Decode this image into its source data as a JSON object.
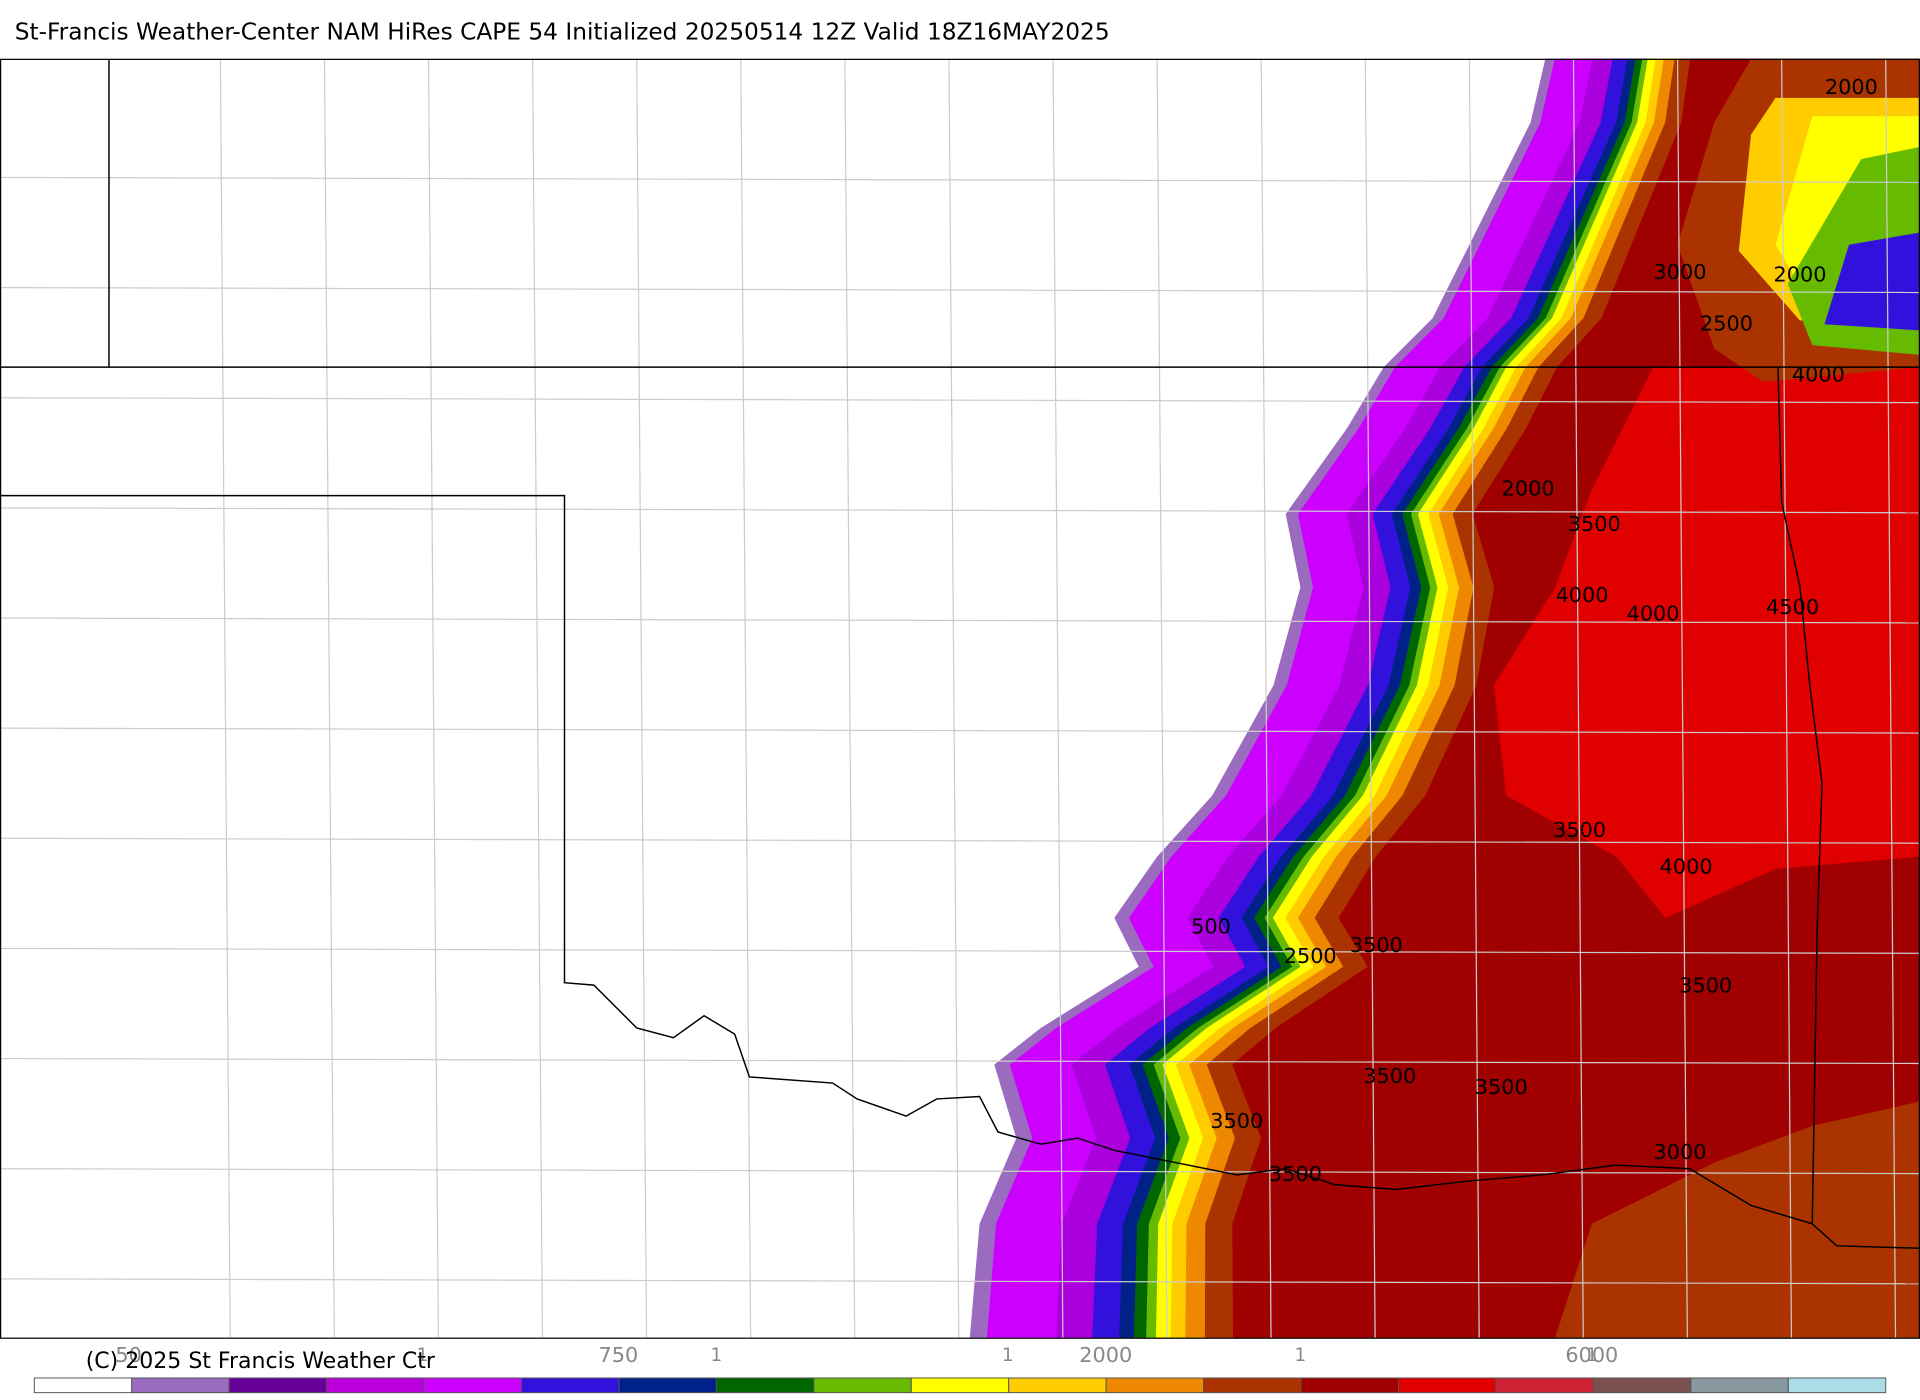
{
  "header": {
    "title": "St-Francis Weather-Center NAM HiRes CAPE  54 Initialized 20250514 12Z Valid 18Z16MAY2025"
  },
  "map": {
    "contour_labels": [
      "2000",
      "3000",
      "2000",
      "2500",
      "4000",
      "2000",
      "3500",
      "4000",
      "4000",
      "4500",
      "3500",
      "4000",
      "500",
      "2500",
      "3500",
      "3500",
      "3500",
      "3500",
      "3500",
      "3000",
      "3500"
    ]
  },
  "colorbar": {
    "labels": [
      "50",
      "750",
      "2000",
      "6000"
    ],
    "separators": [
      "1",
      "1",
      "1",
      "1",
      "1"
    ],
    "colors": [
      "#ffffff",
      "#9b6bbf",
      "#660099",
      "#bb00dd",
      "#cc00ff",
      "#3311dd",
      "#002288",
      "#006600",
      "#66bb00",
      "#ffff00",
      "#ffcc00",
      "#ee8800",
      "#aa3300",
      "#a00000",
      "#e00000",
      "#cc2233",
      "#7a5050",
      "#8899a0",
      "#aadde8"
    ]
  },
  "footer": {
    "copyright": "(C) 2025 St Francis Weather Ctr"
  }
}
